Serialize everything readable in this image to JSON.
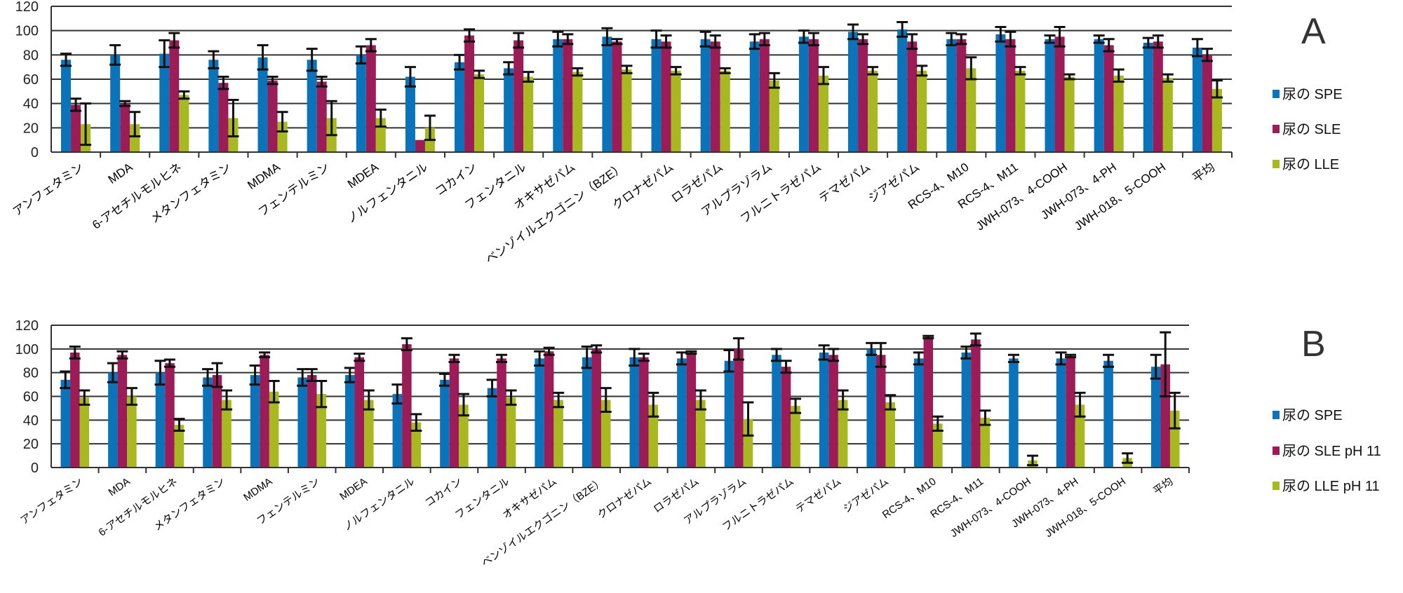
{
  "colors": {
    "spe": "#0a73b9",
    "sle": "#9b1c56",
    "lle": "#a8b820"
  },
  "chart_data": [
    {
      "type": "bar",
      "panel": "A",
      "title": "",
      "xlabel": "",
      "ylabel": "",
      "ylim": [
        0,
        120
      ],
      "yticks": [
        0,
        20,
        40,
        60,
        80,
        100,
        120
      ],
      "grid": true,
      "legend_position": "right",
      "categories": [
        "アンフェタミン",
        "MDA",
        "6-アセチルモルヒネ",
        "メタンフェタミン",
        "MDMA",
        "フェンテルミン",
        "MDEA",
        "ノルフェンタニル",
        "コカイン",
        "フェンタニル",
        "オキサゼパム",
        "ベンゾイルエクゴニン（BZE）",
        "クロナゼパム",
        "ロラゼパム",
        "アルプラゾラム",
        "フルニトラゼパム",
        "テマゼパム",
        "ジアゼパム",
        "RCS-4、M10",
        "RCS-4、M11",
        "JWH-073、4-COOH",
        "JWH-073、4-PH",
        "JWH-018、5-COOH",
        "平均"
      ],
      "series": [
        {
          "name": "尿の SPE",
          "color": "#0a73b9",
          "values": [
            76,
            80,
            81,
            76,
            78,
            76,
            80,
            62,
            74,
            69,
            93,
            95,
            93,
            93,
            91,
            95,
            99,
            101,
            93,
            97,
            93,
            93,
            90,
            86
          ],
          "errors": [
            5,
            8,
            11,
            7,
            10,
            9,
            7,
            8,
            6,
            5,
            6,
            7,
            7,
            6,
            6,
            5,
            6,
            6,
            5,
            6,
            3,
            3,
            4,
            7
          ]
        },
        {
          "name": "尿の SLE",
          "color": "#9b1c56",
          "values": [
            39,
            40,
            92,
            57,
            59,
            58,
            88,
            10,
            96,
            92,
            93,
            91,
            91,
            91,
            93,
            93,
            93,
            91,
            93,
            93,
            95,
            88,
            91,
            80
          ],
          "errors": [
            5,
            2,
            6,
            5,
            3,
            4,
            5,
            0,
            5,
            6,
            4,
            2,
            5,
            5,
            5,
            5,
            4,
            6,
            4,
            6,
            8,
            5,
            5,
            5
          ]
        },
        {
          "name": "尿の LLE",
          "color": "#a8b820",
          "values": [
            23,
            23,
            47,
            28,
            25,
            28,
            28,
            20,
            64,
            62,
            66,
            68,
            67,
            67,
            59,
            63,
            67,
            67,
            69,
            67,
            62,
            63,
            61,
            52
          ],
          "errors": [
            17,
            10,
            3,
            15,
            8,
            14,
            7,
            10,
            3,
            4,
            3,
            3,
            3,
            2,
            6,
            7,
            3,
            4,
            9,
            3,
            2,
            5,
            3,
            7
          ]
        }
      ]
    },
    {
      "type": "bar",
      "panel": "B",
      "title": "",
      "xlabel": "",
      "ylabel": "",
      "ylim": [
        0,
        120
      ],
      "yticks": [
        0,
        20,
        40,
        60,
        80,
        100,
        120
      ],
      "grid": true,
      "legend_position": "right",
      "categories": [
        "アンフェタミン",
        "MDA",
        "6-アセチルモルヒネ",
        "メタンフェタミン",
        "MDMA",
        "フェンテルミン",
        "MDEA",
        "ノルフェンタニル",
        "コカイン",
        "フェンタニル",
        "オキサゼパム",
        "ベンゾイルエクゴニン（BZE）",
        "クロナゼパム",
        "ロラゼパム",
        "アルプラゾラム",
        "フルニトラゼパム",
        "テマゼパム",
        "ジアゼパム",
        "RCS-4、M10",
        "RCS-4、M11",
        "JWH-073、4-COOH",
        "JWH-073、4-PH",
        "JWH-018、5-COOH",
        "平均"
      ],
      "series": [
        {
          "name": "尿の SPE",
          "color": "#0a73b9",
          "values": [
            74,
            80,
            80,
            76,
            78,
            76,
            78,
            62,
            74,
            67,
            92,
            93,
            93,
            92,
            90,
            95,
            97,
            100,
            92,
            97,
            92,
            92,
            90,
            85
          ],
          "errors": [
            7,
            8,
            10,
            7,
            8,
            7,
            6,
            8,
            5,
            7,
            6,
            9,
            7,
            5,
            9,
            5,
            6,
            5,
            5,
            5,
            3,
            5,
            5,
            10
          ]
        },
        {
          "name": "尿の SLE pH 11",
          "color": "#9b1c56",
          "values": [
            97,
            95,
            88,
            78,
            95,
            78,
            93,
            104,
            92,
            92,
            98,
            100,
            93,
            97,
            100,
            85,
            95,
            95,
            110,
            108,
            0,
            94,
            0,
            87
          ],
          "errors": [
            5,
            3,
            3,
            10,
            2,
            5,
            3,
            5,
            3,
            3,
            3,
            3,
            3,
            1,
            9,
            5,
            5,
            10,
            1,
            5,
            0,
            1,
            0,
            27
          ]
        },
        {
          "name": "尿の LLE pH 11",
          "color": "#a8b820",
          "values": [
            59,
            60,
            36,
            57,
            64,
            62,
            57,
            38,
            53,
            59,
            57,
            57,
            53,
            57,
            41,
            52,
            57,
            55,
            37,
            42,
            6,
            53,
            8,
            48
          ],
          "errors": [
            6,
            7,
            5,
            8,
            9,
            11,
            8,
            7,
            9,
            6,
            6,
            10,
            10,
            8,
            14,
            6,
            8,
            6,
            6,
            6,
            4,
            10,
            4,
            15
          ]
        }
      ]
    }
  ]
}
